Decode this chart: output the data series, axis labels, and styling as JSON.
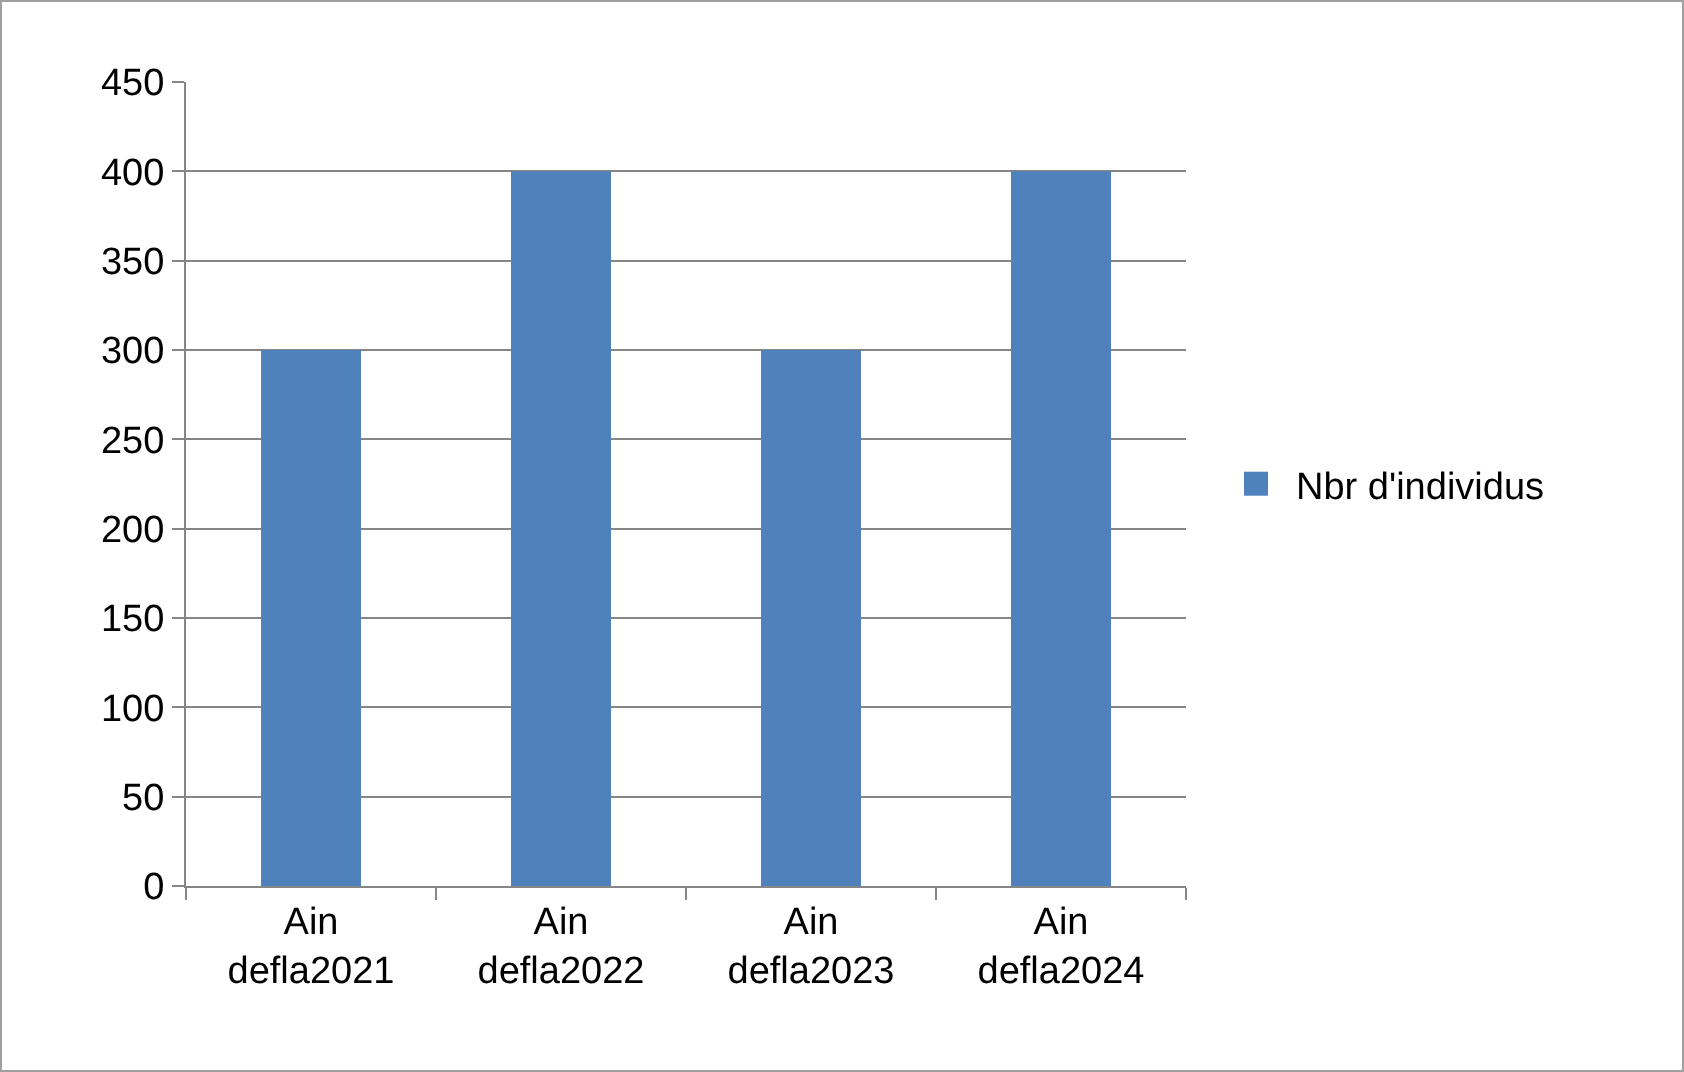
{
  "chart_data": {
    "type": "bar",
    "categories": [
      "Ain defla2021",
      "Ain defla2022",
      "Ain defla2023",
      "Ain defla2024"
    ],
    "series": [
      {
        "name": "Nbr d'individus",
        "color": "#4f81bd",
        "values": [
          300,
          400,
          300,
          400
        ]
      }
    ],
    "ylim": [
      0,
      450
    ],
    "yticks": [
      0,
      50,
      100,
      150,
      200,
      250,
      300,
      350,
      400,
      450
    ],
    "grid": "y",
    "legend": "right"
  }
}
